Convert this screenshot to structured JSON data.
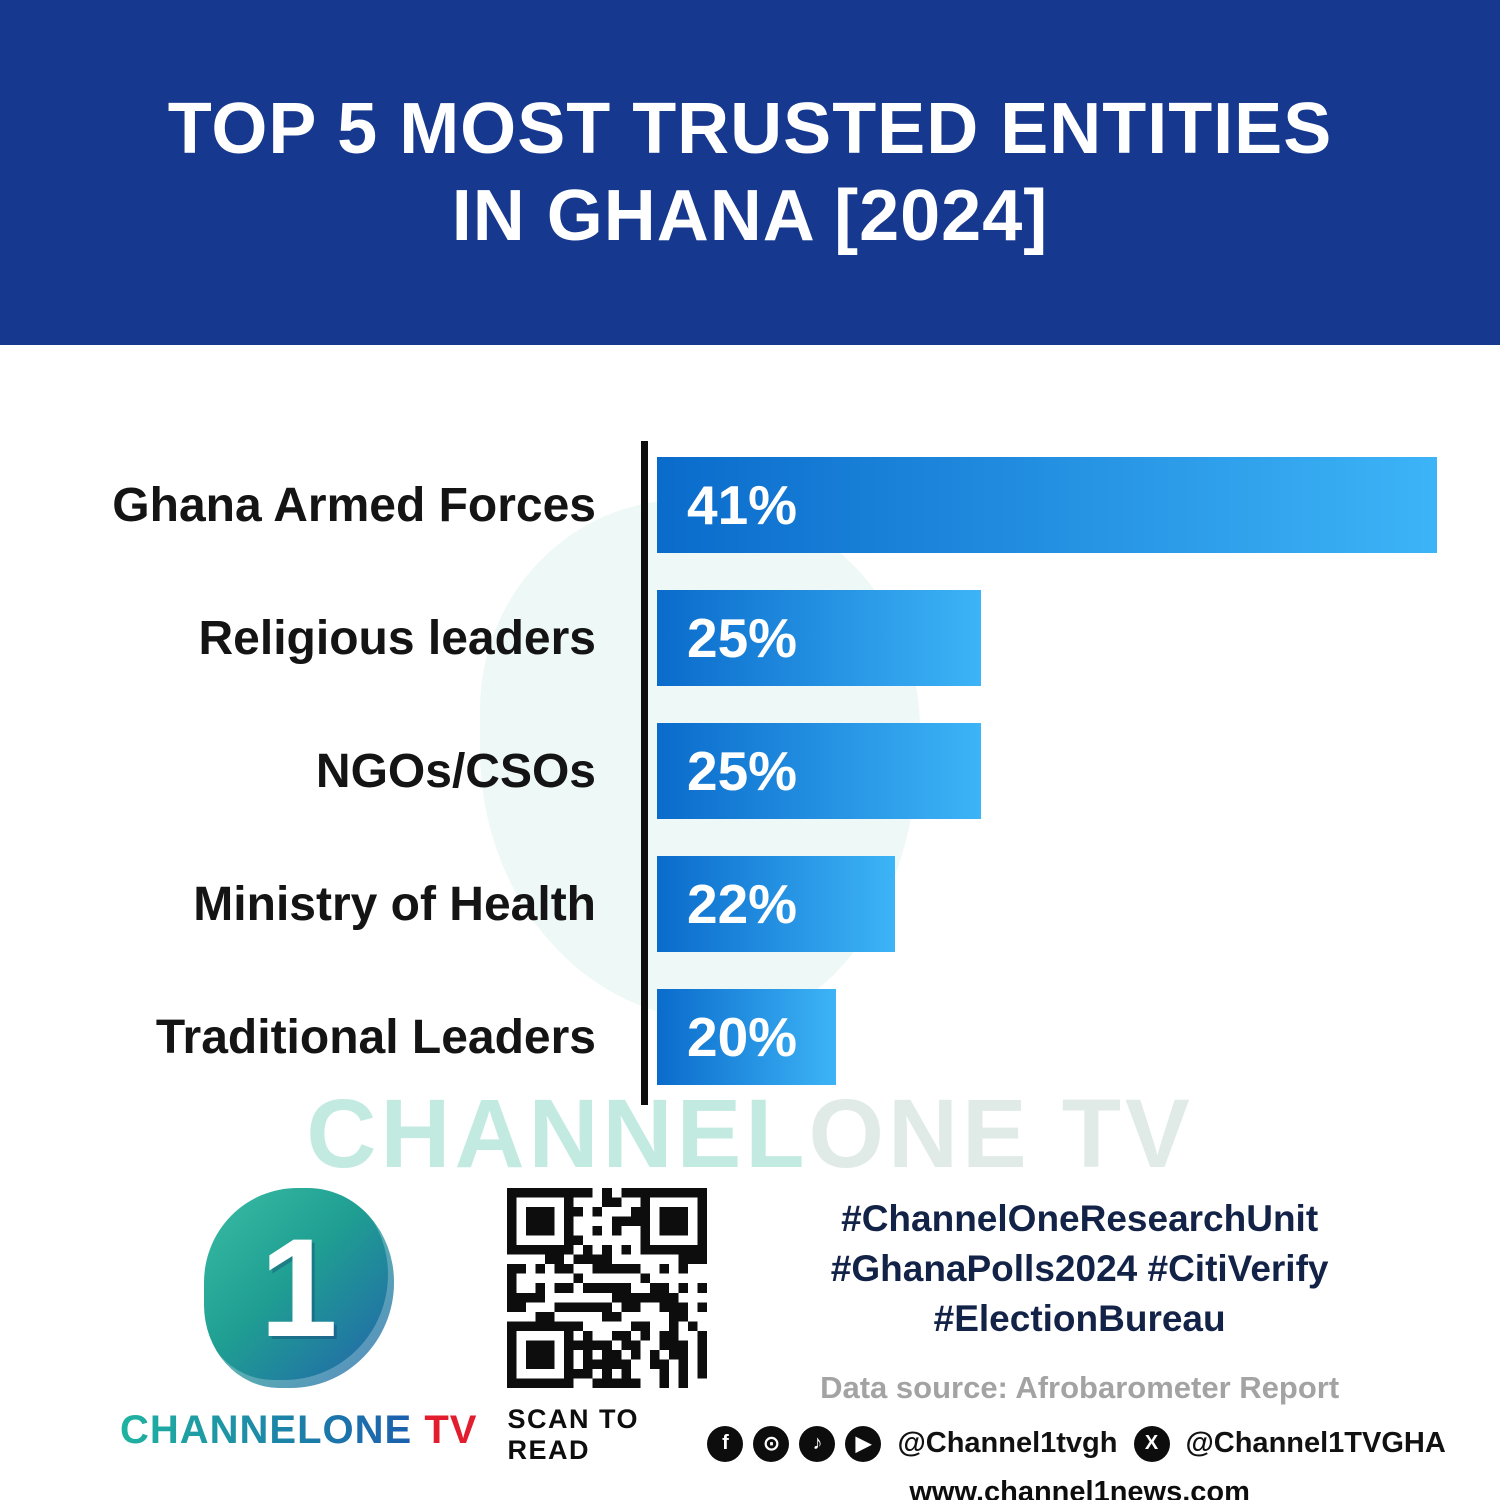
{
  "header": {
    "title_line1": "TOP 5 MOST TRUSTED ENTITIES",
    "title_line2": "IN GHANA [2024]"
  },
  "chart_data": {
    "type": "bar",
    "orientation": "horizontal",
    "title": "Top 5 Most Trusted Entities in Ghana [2024]",
    "categories": [
      "Ghana Armed Forces",
      "Religious leaders",
      "NGOs/CSOs",
      "Ministry of Health",
      "Traditional Leaders"
    ],
    "values": [
      41,
      25,
      25,
      22,
      20
    ],
    "value_labels": [
      "41%",
      "25%",
      "25%",
      "22%",
      "20%"
    ],
    "bar_width_pct": [
      100,
      41.5,
      41.5,
      30.5,
      23
    ],
    "bar_color_start": "#0a6bcb",
    "bar_color_end": "#3db4f7",
    "axis_color": "#0d0d0d",
    "legend": "none",
    "grid": false
  },
  "watermark": {
    "brand": "CHANNEL",
    "rest": "ONE TV"
  },
  "footer": {
    "logo": {
      "numeral": "1",
      "brand_main": "CHANNELONE",
      "brand_tv": " TV"
    },
    "qr_caption": "SCAN TO READ",
    "hashtags": [
      "#ChannelOneResearchUnit",
      "#GhanaPolls2024 #CitiVerify",
      "#ElectionBureau"
    ],
    "data_source": "Data source: Afrobarometer Report",
    "icons": {
      "facebook": "f",
      "instagram": "⊙",
      "tiktok": "♪",
      "youtube": "▶",
      "x": "X"
    },
    "social_handle_1": "@Channel1tvgh",
    "social_handle_2": "@Channel1TVGHA",
    "website": "www.channel1news.com"
  },
  "colors": {
    "header_bg": "#16388e",
    "hashtag": "#132247",
    "brand_red": "#e11d2e"
  }
}
